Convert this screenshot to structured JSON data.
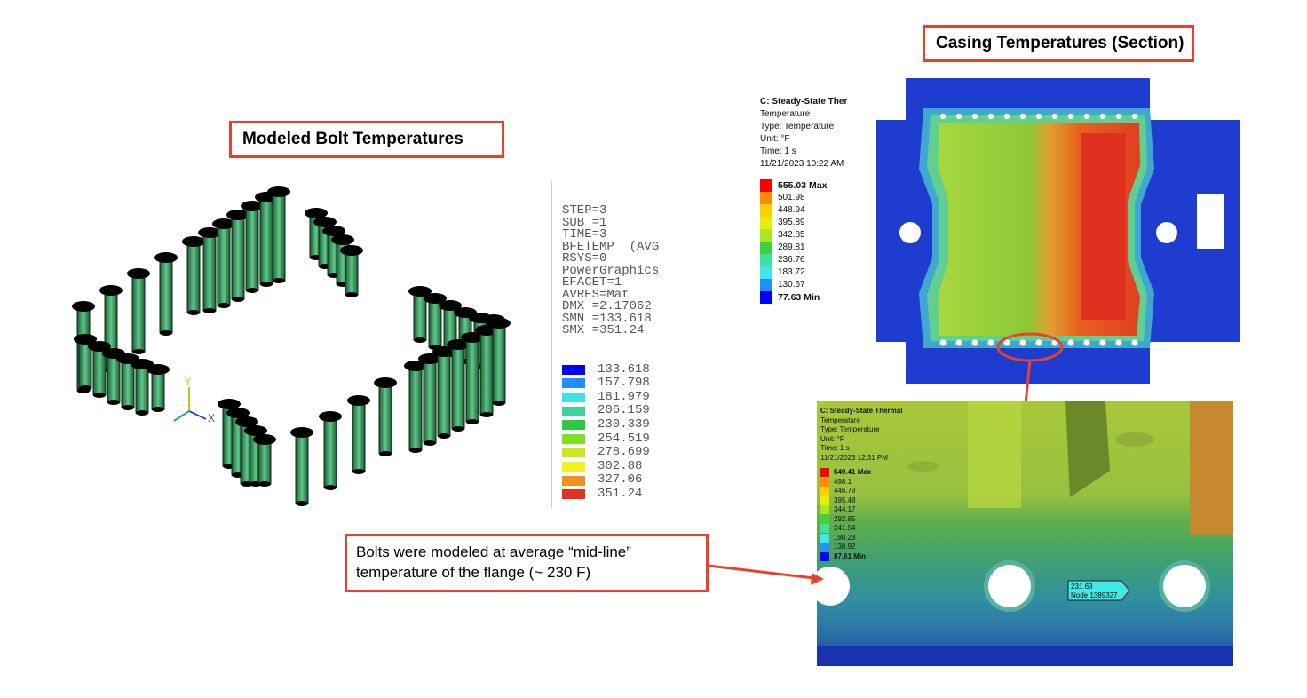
{
  "left_panel": {
    "title": "Modeled Bolt Temperatures",
    "ansys_header": [
      "STEP=3",
      "SUB =1",
      "TIME=3",
      "BFETEMP  (AVG",
      "RSYS=0",
      "PowerGraphics",
      "EFACET=1",
      "AVRES=Mat",
      "DMX =2.17062",
      "SMN =133.618",
      "SMX =351.24"
    ],
    "ansys_scale": [
      {
        "value": "133.618",
        "color": "#0000ff"
      },
      {
        "value": "157.798",
        "color": "#1e90ff"
      },
      {
        "value": "181.979",
        "color": "#40e0e8"
      },
      {
        "value": "206.159",
        "color": "#40d0a0"
      },
      {
        "value": "230.339",
        "color": "#30c840"
      },
      {
        "value": "254.519",
        "color": "#80e020"
      },
      {
        "value": "278.699",
        "color": "#c8e820"
      },
      {
        "value": "302.88",
        "color": "#f8f020"
      },
      {
        "value": "327.06",
        "color": "#f09020"
      },
      {
        "value": "351.24",
        "color": "#e03020"
      }
    ],
    "triad": {
      "y": "Y",
      "x": "X",
      "z": "Z"
    }
  },
  "right_panel": {
    "title": "Casing Temperatures (Section)",
    "top_legend": {
      "header": [
        "C: Steady-State Ther",
        "Temperature",
        "Type: Temperature",
        "Unit: °F",
        "Time: 1 s",
        "11/21/2023 10:22 AM"
      ],
      "max_label": "555.03 Max",
      "min_label": "77.63 Min",
      "values": [
        "501.98",
        "448.94",
        "395.89",
        "342.85",
        "289.81",
        "236.76",
        "183.72",
        "130.67"
      ]
    },
    "detail_legend": {
      "header": [
        "C: Steady-State Thermal",
        "Temperature",
        "Type: Temperature",
        "Unit: °F",
        "Time: 1 s",
        "11/21/2023 12:31 PM"
      ],
      "max_label": "549.41 Max",
      "min_label": "87.61 Min",
      "values": [
        "498.1",
        "446.79",
        "395.48",
        "344.17",
        "292.85",
        "241.54",
        "190.23",
        "138.92"
      ]
    },
    "probe": {
      "value": "231.63",
      "node": "Node 1389327"
    }
  },
  "note": {
    "lines": [
      "Bolts were modeled at average “mid-line”",
      "temperature of the flange (~ 230 F)"
    ]
  },
  "colors": {
    "callout_border": "#e8412c",
    "wb_scale": [
      "#ff0000",
      "#ff8c00",
      "#ffd000",
      "#e8f000",
      "#a8e820",
      "#40d040",
      "#40e0a0",
      "#40e8e8",
      "#2090ff",
      "#0000ff"
    ]
  }
}
